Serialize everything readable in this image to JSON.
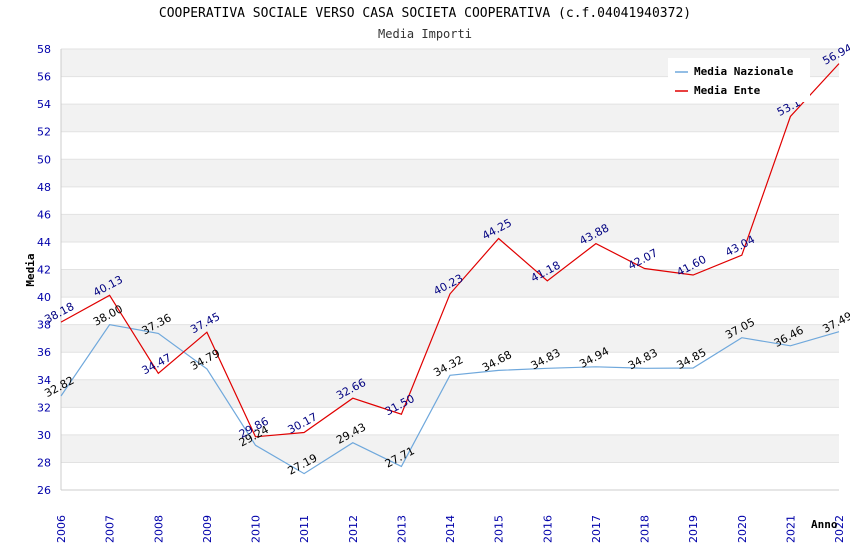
{
  "chart_data": {
    "type": "line",
    "title": "COOPERATIVA SOCIALE VERSO CASA SOCIETA COOPERATIVA (c.f.04041940372)",
    "subtitle": "Media Importi",
    "xlabel": "Anno",
    "ylabel": "Media",
    "ylim": [
      26,
      58
    ],
    "yticks": [
      26,
      28,
      30,
      32,
      34,
      36,
      38,
      40,
      42,
      44,
      46,
      48,
      50,
      52,
      54,
      56,
      58
    ],
    "categories": [
      "2006",
      "2007",
      "2008",
      "2009",
      "2010",
      "2011",
      "2012",
      "2013",
      "2014",
      "2015",
      "2016",
      "2017",
      "2018",
      "2019",
      "2020",
      "2021",
      "2022"
    ],
    "grid": "horizontal-bands",
    "legend_position": "top-right",
    "series": [
      {
        "name": "Media Nazionale",
        "color": "#6fa8dc",
        "label_color": "#000000",
        "values": [
          32.82,
          38.0,
          37.36,
          34.79,
          29.24,
          27.19,
          29.43,
          27.71,
          34.32,
          34.68,
          34.83,
          34.94,
          34.83,
          34.85,
          37.05,
          36.46,
          37.49
        ],
        "labels": [
          "32.82",
          "38.00",
          "37.36",
          "34.79",
          "29.24",
          "27.19",
          "29.43",
          "27.71",
          "34.32",
          "34.68",
          "34.83",
          "34.94",
          "34.83",
          "34.85",
          "37.05",
          "36.46",
          "37.49"
        ]
      },
      {
        "name": "Media Ente",
        "color": "#e00000",
        "label_color": "#000080",
        "values": [
          38.18,
          40.13,
          34.47,
          37.45,
          29.86,
          30.17,
          32.66,
          31.5,
          40.23,
          44.25,
          41.18,
          43.88,
          42.07,
          41.6,
          43.04,
          53.1,
          56.94
        ],
        "labels": [
          "38.18",
          "40.13",
          "34.47",
          "37.45",
          "29.86",
          "30.17",
          "32.66",
          "31.50",
          "40.23",
          "44.25",
          "41.18",
          "43.88",
          "42.07",
          "41.60",
          "43.04",
          "53.1",
          "56.94"
        ]
      }
    ]
  }
}
